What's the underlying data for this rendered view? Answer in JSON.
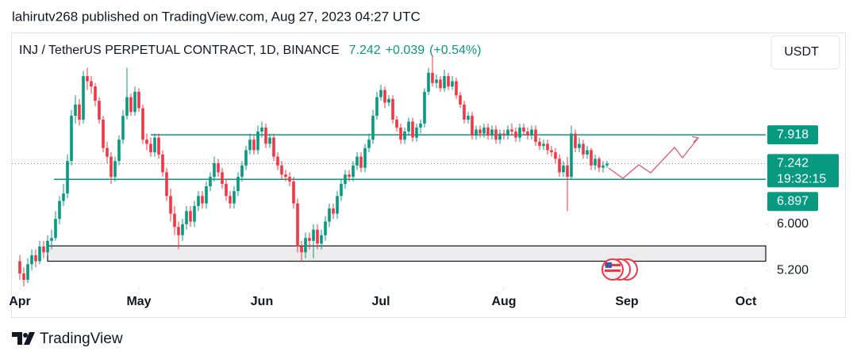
{
  "header": {
    "published": "lahirutv268 published on TradingView.com, Aug 27, 2023 04:27 UTC"
  },
  "footer": {
    "brand": "TradingView"
  },
  "chart_data": {
    "type": "candlestick",
    "title": "INJ / TetherUS PERPETUAL CONTRACT, 1D, BINANCE",
    "last_price": 7.242,
    "change": "+0.039",
    "change_pct": "(+0.54%)",
    "currency": "USDT",
    "countdown": "19:32:15",
    "up_color": "#089981",
    "down_color": "#f23645",
    "log_scale": true,
    "ylim": [
      4.94,
      10.85
    ],
    "yticks": [
      {
        "value": 6,
        "label": "6.000"
      },
      {
        "value": 5.2,
        "label": "5.200"
      }
    ],
    "xlim": [
      -2,
      188
    ],
    "xticks": [
      {
        "value": 0,
        "label": "Apr"
      },
      {
        "value": 30,
        "label": "May"
      },
      {
        "value": 61,
        "label": "Jun"
      },
      {
        "value": 91,
        "label": "Jul"
      },
      {
        "value": 122,
        "label": "Aug"
      },
      {
        "value": 153,
        "label": "Sep"
      },
      {
        "value": 183,
        "label": "Oct"
      }
    ],
    "levels": [
      {
        "value": 7.918,
        "color": "#089981"
      },
      {
        "value": 6.897,
        "color": "#089981"
      }
    ],
    "zone": [
      5.35,
      5.61
    ],
    "open": [
      5.35,
      5.15,
      5.05,
      5.3,
      5.45,
      5.35,
      5.6,
      5.5,
      5.7,
      5.75,
      6.1,
      6.45,
      6.6,
      7.3,
      8.4,
      8.7,
      8.3,
      9.5,
      9.35,
      9.2,
      8.8,
      8.3,
      7.6,
      7.4,
      6.95,
      7.3,
      7.8,
      8.4,
      8.9,
      8.5,
      9.05,
      8.6,
      7.8,
      7.7,
      7.5,
      7.85,
      7.45,
      7.05,
      6.55,
      6.2,
      5.95,
      5.8,
      6.0,
      6.25,
      6.05,
      6.35,
      6.55,
      6.4,
      6.75,
      6.95,
      7.25,
      7.05,
      6.8,
      6.55,
      6.4,
      6.65,
      6.95,
      7.2,
      7.55,
      7.8,
      7.55,
      8.0,
      8.1,
      7.7,
      7.85,
      7.4,
      7.2,
      7.0,
      6.95,
      6.85,
      6.4,
      5.6,
      5.5,
      5.75,
      5.7,
      5.9,
      5.65,
      5.8,
      6.05,
      6.3,
      6.2,
      6.55,
      6.8,
      7.0,
      6.95,
      7.2,
      7.4,
      7.15,
      7.6,
      7.8,
      8.4,
      8.9,
      9.1,
      8.75,
      8.85,
      8.3,
      8.1,
      7.8,
      8.0,
      8.25,
      7.85,
      8.1,
      8.2,
      9.05,
      9.6,
      9.3,
      9.4,
      9.15,
      9.5,
      9.2,
      9.35,
      8.95,
      8.7,
      8.3,
      8.4,
      7.9,
      8.05,
      7.95,
      8.1,
      7.9,
      8.05,
      7.8,
      7.95,
      7.9,
      8.05,
      8.0,
      7.85,
      8.1,
      8.0,
      7.9,
      8.05,
      7.75,
      7.65,
      7.7,
      7.55,
      7.5,
      7.35,
      7.05,
      7.2,
      6.95,
      7.95,
      7.6,
      7.7,
      7.45,
      7.55,
      7.2,
      7.35,
      7.15,
      7.2
    ],
    "high": [
      5.45,
      5.25,
      5.4,
      5.55,
      5.55,
      5.7,
      5.7,
      5.8,
      5.9,
      6.25,
      6.55,
      6.8,
      7.45,
      8.55,
      8.95,
      8.85,
      9.65,
      9.75,
      9.5,
      9.3,
      8.9,
      8.4,
      7.75,
      7.5,
      7.4,
      7.9,
      8.55,
      9.75,
      9.0,
      9.2,
      9.15,
      8.7,
      7.95,
      7.85,
      7.95,
      7.95,
      7.55,
      7.15,
      6.7,
      6.35,
      6.05,
      6.1,
      6.35,
      6.35,
      6.45,
      6.65,
      6.65,
      6.85,
      7.05,
      7.4,
      7.35,
      7.15,
      6.9,
      6.65,
      6.75,
      7.05,
      7.3,
      7.65,
      7.95,
      7.9,
      8.15,
      8.25,
      8.2,
      7.95,
      7.95,
      7.5,
      7.3,
      7.1,
      7.05,
      6.95,
      6.5,
      5.7,
      5.85,
      5.85,
      6.0,
      6.0,
      5.9,
      6.15,
      6.4,
      6.4,
      6.65,
      6.9,
      7.1,
      7.1,
      7.3,
      7.5,
      7.5,
      7.7,
      7.95,
      8.55,
      9.05,
      9.25,
      9.2,
      8.95,
      8.95,
      8.4,
      8.2,
      8.1,
      8.35,
      8.35,
      8.2,
      8.3,
      9.15,
      9.75,
      10.1,
      9.55,
      9.5,
      9.7,
      9.6,
      9.5,
      9.45,
      9.05,
      8.8,
      8.5,
      8.5,
      8.15,
      8.15,
      8.2,
      8.2,
      8.15,
      8.15,
      8.05,
      8.05,
      8.15,
      8.2,
      8.1,
      8.2,
      8.2,
      8.1,
      8.15,
      8.15,
      7.85,
      7.8,
      7.8,
      7.65,
      7.6,
      7.45,
      7.3,
      7.4,
      8.15,
      8.05,
      7.85,
      7.8,
      7.65,
      7.6,
      7.45,
      7.4,
      7.3,
      7.3
    ],
    "low": [
      5.05,
      4.95,
      5.0,
      5.2,
      5.25,
      5.3,
      5.4,
      5.45,
      5.55,
      5.7,
      6.0,
      6.35,
      6.5,
      7.2,
      8.2,
      8.15,
      8.2,
      9.1,
      9.0,
      8.65,
      8.2,
      7.5,
      7.25,
      6.8,
      6.85,
      7.2,
      7.7,
      8.3,
      8.4,
      8.4,
      8.5,
      7.7,
      7.55,
      7.4,
      7.4,
      7.35,
      6.95,
      6.45,
      6.05,
      5.8,
      5.55,
      5.7,
      5.9,
      5.95,
      5.95,
      6.25,
      6.3,
      6.3,
      6.65,
      6.85,
      6.95,
      6.7,
      6.45,
      6.3,
      6.3,
      6.55,
      6.85,
      7.1,
      7.45,
      7.45,
      7.45,
      7.85,
      7.6,
      7.6,
      7.3,
      7.1,
      6.9,
      6.85,
      6.75,
      6.3,
      5.5,
      5.35,
      5.4,
      5.55,
      5.4,
      5.55,
      5.55,
      5.7,
      5.95,
      6.1,
      6.1,
      6.45,
      6.7,
      6.85,
      6.85,
      7.1,
      7.05,
      7.05,
      7.5,
      7.7,
      8.3,
      8.8,
      8.6,
      8.65,
      8.2,
      8.0,
      7.7,
      7.7,
      7.9,
      7.75,
      7.75,
      7.95,
      8.1,
      8.95,
      9.2,
      9.15,
      9.05,
      9.05,
      9.1,
      9.1,
      8.85,
      8.6,
      8.2,
      8.2,
      7.8,
      7.8,
      7.85,
      7.85,
      7.8,
      7.8,
      7.7,
      7.7,
      7.8,
      7.8,
      7.9,
      7.75,
      7.75,
      7.9,
      7.8,
      7.8,
      7.65,
      7.55,
      7.55,
      7.45,
      7.4,
      7.25,
      6.95,
      6.95,
      6.25,
      6.9,
      7.5,
      7.5,
      7.35,
      7.35,
      7.1,
      7.1,
      7.05,
      7.05,
      7.15
    ],
    "close": [
      5.15,
      5.05,
      5.3,
      5.45,
      5.35,
      5.6,
      5.5,
      5.7,
      5.75,
      6.1,
      6.45,
      6.6,
      7.3,
      8.4,
      8.7,
      8.3,
      9.5,
      9.35,
      9.2,
      8.8,
      8.3,
      7.6,
      7.4,
      6.95,
      7.3,
      7.8,
      8.4,
      8.9,
      8.5,
      9.05,
      8.6,
      7.8,
      7.7,
      7.5,
      7.85,
      7.45,
      7.05,
      6.55,
      6.2,
      5.95,
      5.8,
      6.0,
      6.25,
      6.05,
      6.35,
      6.55,
      6.4,
      6.75,
      6.95,
      7.25,
      7.05,
      6.8,
      6.55,
      6.4,
      6.65,
      6.95,
      7.2,
      7.55,
      7.8,
      7.55,
      8.0,
      8.1,
      7.7,
      7.85,
      7.4,
      7.2,
      7.0,
      6.95,
      6.85,
      6.4,
      5.6,
      5.5,
      5.75,
      5.7,
      5.9,
      5.65,
      5.8,
      6.05,
      6.3,
      6.2,
      6.55,
      6.8,
      7.0,
      6.95,
      7.2,
      7.4,
      7.15,
      7.6,
      7.8,
      8.4,
      8.9,
      9.1,
      8.75,
      8.85,
      8.3,
      8.1,
      7.8,
      8.0,
      8.25,
      7.85,
      8.1,
      8.2,
      9.05,
      9.6,
      9.3,
      9.4,
      9.15,
      9.5,
      9.2,
      9.35,
      8.95,
      8.7,
      8.3,
      8.4,
      7.9,
      8.05,
      7.95,
      8.1,
      7.9,
      8.05,
      7.8,
      7.95,
      7.9,
      8.05,
      8.0,
      7.85,
      8.1,
      8.0,
      7.9,
      8.05,
      7.75,
      7.65,
      7.7,
      7.55,
      7.5,
      7.35,
      7.05,
      7.2,
      6.95,
      7.95,
      7.6,
      7.7,
      7.45,
      7.55,
      7.2,
      7.35,
      7.15,
      7.2,
      7.242
    ]
  }
}
